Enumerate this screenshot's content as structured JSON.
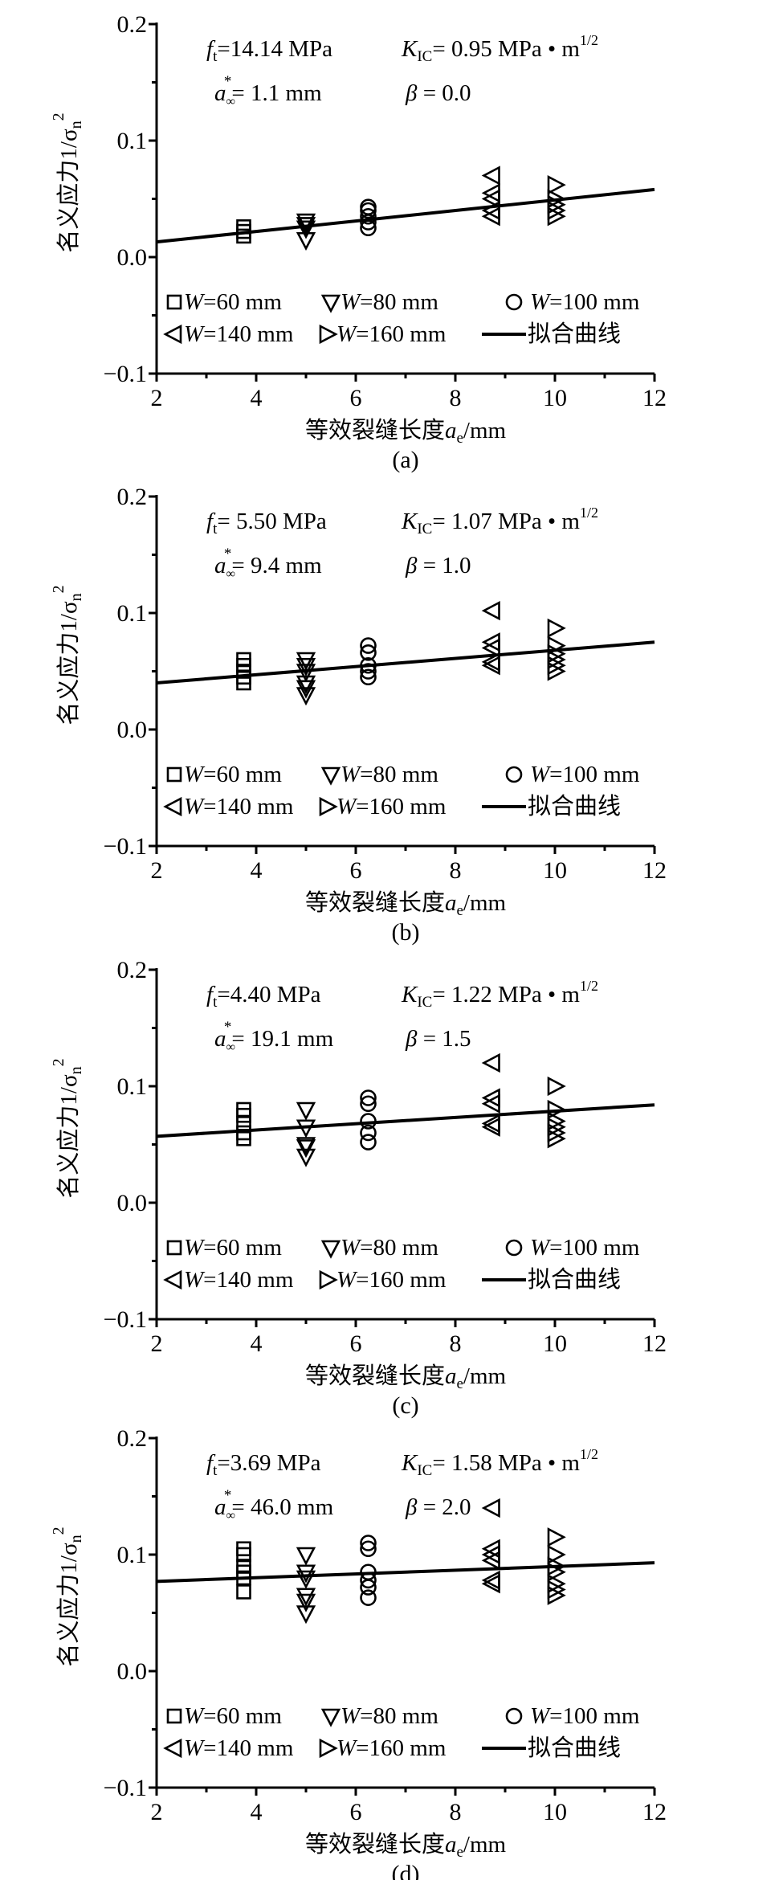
{
  "symbols": {
    "f": "f",
    "t": "t",
    "K": "K",
    "IC": "IC",
    "a": "a",
    "inf": "∞",
    "star": "*",
    "beta": "β",
    "m_exp": "1/2",
    "ylabel_text": "名义应力1/σ",
    "ylabel_sub": "n",
    "ylabel_sup": "2",
    "xlabel_text": "等效裂缝长度",
    "xlabel_a": "a",
    "xlabel_sub": "e",
    "xlabel_unit": "/mm"
  },
  "legend": {
    "W": "W",
    "items": [
      {
        "marker": "square",
        "label": "=60 mm"
      },
      {
        "marker": "triangle-down",
        "label": "=80 mm"
      },
      {
        "marker": "circle",
        "label": "=100 mm"
      },
      {
        "marker": "triangle-left",
        "label": "=140 mm"
      },
      {
        "marker": "triangle-right",
        "label": "=160 mm"
      },
      {
        "marker": "line",
        "label": "拟合曲线"
      }
    ]
  },
  "chart_data": [
    {
      "type": "scatter",
      "caption": "(a)",
      "xlabel": "等效裂缝长度ae/mm",
      "ylabel": "名义应力1/σn2",
      "xlim": [
        2,
        12
      ],
      "ylim": [
        -0.1,
        0.2
      ],
      "xticks": [
        "2",
        "4",
        "6",
        "8",
        "10",
        "12"
      ],
      "yticks": [
        "−0.1",
        "0.0",
        "0.1",
        "0.2"
      ],
      "annotations": {
        "ft": "=14.14 MPa",
        "kic": "= 0.95 MPa • m",
        "a_inf": "= 1.1 mm",
        "beta": " = 0.0"
      },
      "fit": {
        "x": [
          2,
          12
        ],
        "y": [
          0.013,
          0.058
        ]
      },
      "series": [
        {
          "name": "W=60 mm",
          "marker": "square",
          "x": 3.75,
          "y": [
            0.018,
            0.022,
            0.026
          ]
        },
        {
          "name": "W=80 mm",
          "marker": "triangle-down",
          "x": 5.0,
          "y": [
            0.015,
            0.025,
            0.028,
            0.031
          ]
        },
        {
          "name": "W=100 mm",
          "marker": "circle",
          "x": 6.25,
          "y": [
            0.025,
            0.03,
            0.035,
            0.04,
            0.043
          ]
        },
        {
          "name": "W=140 mm",
          "marker": "triangle-left",
          "x": 8.75,
          "y": [
            0.035,
            0.04,
            0.05,
            0.055,
            0.07
          ]
        },
        {
          "name": "W=160 mm",
          "marker": "triangle-right",
          "x": 10.0,
          "y": [
            0.035,
            0.04,
            0.045,
            0.05,
            0.062
          ]
        }
      ]
    },
    {
      "type": "scatter",
      "caption": "(b)",
      "xlabel": "等效裂缝长度ae/mm",
      "ylabel": "名义应力1/σn2",
      "xlim": [
        2,
        12
      ],
      "ylim": [
        -0.1,
        0.2
      ],
      "xticks": [
        "2",
        "4",
        "6",
        "8",
        "10",
        "12"
      ],
      "yticks": [
        "−0.1",
        "0.0",
        "0.1",
        "0.2"
      ],
      "annotations": {
        "ft": "= 5.50 MPa",
        "kic": "= 1.07 MPa • m",
        "a_inf": "= 9.4 mm",
        "beta": " = 1.0"
      },
      "fit": {
        "x": [
          2,
          12
        ],
        "y": [
          0.04,
          0.075
        ]
      },
      "series": [
        {
          "name": "W=60 mm",
          "marker": "square",
          "x": 3.75,
          "y": [
            0.04,
            0.045,
            0.05,
            0.055,
            0.06
          ]
        },
        {
          "name": "W=80 mm",
          "marker": "triangle-down",
          "x": 5.0,
          "y": [
            0.03,
            0.036,
            0.04,
            0.05,
            0.055,
            0.06
          ]
        },
        {
          "name": "W=100 mm",
          "marker": "circle",
          "x": 6.25,
          "y": [
            0.045,
            0.05,
            0.055,
            0.066,
            0.072
          ]
        },
        {
          "name": "W=140 mm",
          "marker": "triangle-left",
          "x": 8.75,
          "y": [
            0.055,
            0.058,
            0.07,
            0.075,
            0.102
          ]
        },
        {
          "name": "W=160 mm",
          "marker": "triangle-right",
          "x": 10.0,
          "y": [
            0.05,
            0.055,
            0.06,
            0.065,
            0.072,
            0.087
          ]
        }
      ]
    },
    {
      "type": "scatter",
      "caption": "(c)",
      "xlabel": "等效裂缝长度ae/mm",
      "ylabel": "名义应力1/σn2",
      "xlim": [
        2,
        12
      ],
      "ylim": [
        -0.1,
        0.2
      ],
      "xticks": [
        "2",
        "4",
        "6",
        "8",
        "10",
        "12"
      ],
      "yticks": [
        "−0.1",
        "0.0",
        "0.1",
        "0.2"
      ],
      "annotations": {
        "ft": "=4.40 MPa",
        "kic": "= 1.22 MPa • m",
        "a_inf": "= 19.1 mm",
        "beta": " = 1.5"
      },
      "fit": {
        "x": [
          2,
          12
        ],
        "y": [
          0.057,
          0.084
        ]
      },
      "series": [
        {
          "name": "W=60 mm",
          "marker": "square",
          "x": 3.75,
          "y": [
            0.055,
            0.06,
            0.068,
            0.075,
            0.08
          ]
        },
        {
          "name": "W=80 mm",
          "marker": "triangle-down",
          "x": 5.0,
          "y": [
            0.04,
            0.048,
            0.05,
            0.065,
            0.08
          ]
        },
        {
          "name": "W=100 mm",
          "marker": "circle",
          "x": 6.25,
          "y": [
            0.052,
            0.06,
            0.07,
            0.085,
            0.09
          ]
        },
        {
          "name": "W=140 mm",
          "marker": "triangle-left",
          "x": 8.75,
          "y": [
            0.065,
            0.068,
            0.085,
            0.09,
            0.12
          ]
        },
        {
          "name": "W=160 mm",
          "marker": "triangle-right",
          "x": 10.0,
          "y": [
            0.055,
            0.06,
            0.065,
            0.07,
            0.08,
            0.1
          ]
        }
      ]
    },
    {
      "type": "scatter",
      "caption": "(d)",
      "xlabel": "等效裂缝长度ae/mm",
      "ylabel": "名义应力1/σn2",
      "xlim": [
        2,
        12
      ],
      "ylim": [
        -0.1,
        0.2
      ],
      "xticks": [
        "2",
        "4",
        "6",
        "8",
        "10",
        "12"
      ],
      "yticks": [
        "−0.1",
        "0.0",
        "0.1",
        "0.2"
      ],
      "annotations": {
        "ft": "=3.69 MPa",
        "kic": "= 1.58 MPa • m",
        "a_inf": "= 46.0 mm",
        "beta": " = 2.0"
      },
      "fit": {
        "x": [
          2,
          12
        ],
        "y": [
          0.077,
          0.093
        ]
      },
      "series": [
        {
          "name": "W=60 mm",
          "marker": "square",
          "x": 3.75,
          "y": [
            0.068,
            0.08,
            0.085,
            0.09,
            0.1,
            0.105
          ]
        },
        {
          "name": "W=80 mm",
          "marker": "triangle-down",
          "x": 5.0,
          "y": [
            0.05,
            0.06,
            0.065,
            0.08,
            0.085,
            0.1
          ]
        },
        {
          "name": "W=100 mm",
          "marker": "circle",
          "x": 6.25,
          "y": [
            0.063,
            0.072,
            0.078,
            0.085,
            0.105,
            0.11
          ]
        },
        {
          "name": "W=140 mm",
          "marker": "triangle-left",
          "x": 8.75,
          "y": [
            0.075,
            0.078,
            0.095,
            0.1,
            0.105,
            0.14
          ]
        },
        {
          "name": "W=160 mm",
          "marker": "triangle-right",
          "x": 10.0,
          "y": [
            0.065,
            0.07,
            0.075,
            0.085,
            0.09,
            0.1,
            0.115
          ]
        }
      ]
    }
  ]
}
